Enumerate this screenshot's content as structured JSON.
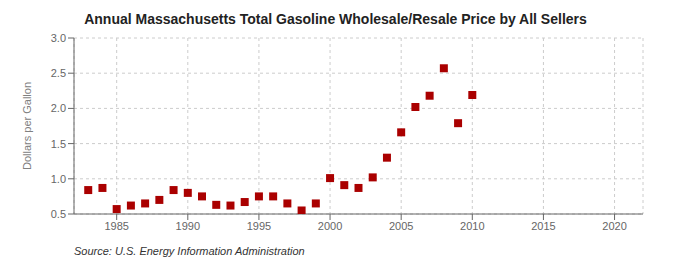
{
  "chart_data": {
    "type": "scatter",
    "title": "Annual Massachusetts Total Gasoline Wholesale/Resale Price by All Sellers",
    "ylabel": "Dollars per Gallon",
    "annotation": "Source: U.S. Energy Information Administration",
    "x": [
      1983,
      1984,
      1985,
      1986,
      1987,
      1988,
      1989,
      1990,
      1991,
      1992,
      1993,
      1994,
      1995,
      1996,
      1997,
      1998,
      1999,
      2000,
      2001,
      2002,
      2003,
      2004,
      2005,
      2006,
      2007,
      2008,
      2009,
      2010
    ],
    "values": [
      0.84,
      0.87,
      0.57,
      0.62,
      0.65,
      0.7,
      0.84,
      0.8,
      0.75,
      0.63,
      0.62,
      0.67,
      0.75,
      0.75,
      0.65,
      0.55,
      0.65,
      1.01,
      0.91,
      0.87,
      1.02,
      1.3,
      1.66,
      2.02,
      2.18,
      2.57,
      1.79,
      2.19
    ],
    "color": "#aa0000",
    "marker": "square",
    "xlim": [
      1982,
      2022
    ],
    "xticks": [
      1985,
      1990,
      1995,
      2000,
      2005,
      2010,
      2015,
      2020
    ],
    "ylim": [
      0.5,
      3.0
    ],
    "yticks": [
      0.5,
      {
        "value": 1.0,
        "label": "1.0"
      },
      1.5,
      {
        "value": 2.0,
        "label": "2.0"
      },
      2.5,
      {
        "value": 3.0,
        "label": "3.0"
      }
    ],
    "grid": true
  }
}
